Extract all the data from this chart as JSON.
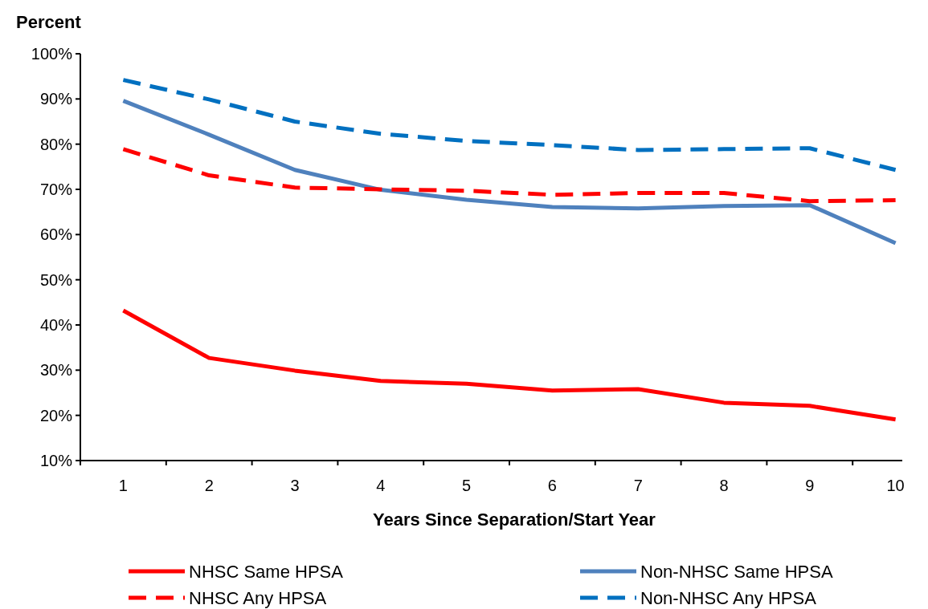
{
  "chart_data": {
    "type": "line",
    "ylabel": "Percent",
    "xlabel": "Years Since Separation/Start Year",
    "categories": [
      "1",
      "2",
      "3",
      "4",
      "5",
      "6",
      "7",
      "8",
      "9",
      "10"
    ],
    "ylim": [
      10,
      100
    ],
    "yticks": [
      {
        "value": 10,
        "label": "10%"
      },
      {
        "value": 20,
        "label": "20%"
      },
      {
        "value": 30,
        "label": "30%"
      },
      {
        "value": 40,
        "label": "40%"
      },
      {
        "value": 50,
        "label": "50%"
      },
      {
        "value": 60,
        "label": "60%"
      },
      {
        "value": 70,
        "label": "70%"
      },
      {
        "value": 80,
        "label": "80%"
      },
      {
        "value": 90,
        "label": "90%"
      },
      {
        "value": 100,
        "label": "100%"
      }
    ],
    "grid": false,
    "legend": "bottom",
    "marker": "none",
    "series": [
      {
        "name": "NHSC Same HPSA",
        "color": "#ff0000",
        "line_style": "solid",
        "values": [
          43.2,
          32.7,
          29.9,
          27.6,
          27,
          25.5,
          25.8,
          22.8,
          22.1,
          19.1
        ]
      },
      {
        "name": "Non-NHSC Same HPSA",
        "color": "#4f81bd",
        "line_style": "solid",
        "values": [
          89.6,
          82.1,
          74.3,
          69.9,
          67.7,
          66.1,
          65.8,
          66.3,
          66.5,
          58.1
        ]
      },
      {
        "name": "NHSC Any HPSA",
        "color": "#ff0000",
        "line_style": "dashed",
        "values": [
          78.9,
          73.1,
          70.4,
          70,
          69.7,
          68.8,
          69.2,
          69.2,
          67.4,
          67.6
        ]
      },
      {
        "name": "Non-NHSC Any HPSA",
        "color": "#0070c0",
        "line_style": "dashed",
        "values": [
          94.2,
          89.9,
          85,
          82.3,
          80.7,
          79.8,
          78.7,
          78.9,
          79.1,
          74.3
        ]
      }
    ]
  }
}
